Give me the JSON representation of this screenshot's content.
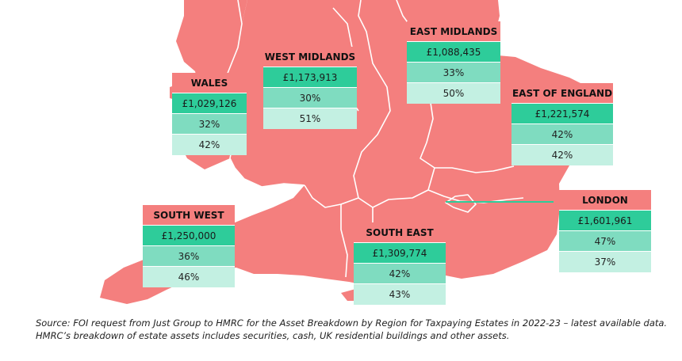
{
  "colors": {
    "land": "#f47f7e",
    "border": "#ffffff",
    "name_band": "#f47f7e",
    "value_band": "#2ecc9a",
    "pct_band_1": "#7fdcc0",
    "pct_band_2": "#c3f0e2",
    "london_pointer": "#2ecc9a"
  },
  "regions": [
    {
      "key": "east_midlands",
      "name": "EAST MIDLANDS",
      "value": "£1,088,435",
      "pct_1": "33%",
      "pct_2": "50%"
    },
    {
      "key": "west_midlands",
      "name": "WEST MIDLANDS",
      "value": "£1,173,913",
      "pct_1": "30%",
      "pct_2": "51%"
    },
    {
      "key": "wales",
      "name": "WALES",
      "value": "£1,029,126",
      "pct_1": "32%",
      "pct_2": "42%"
    },
    {
      "key": "east_of_england",
      "name": "EAST OF ENGLAND",
      "value": "£1,221,574",
      "pct_1": "42%",
      "pct_2": "42%"
    },
    {
      "key": "london",
      "name": "LONDON",
      "value": "£1,601,961",
      "pct_1": "47%",
      "pct_2": "37%"
    },
    {
      "key": "south_west",
      "name": "SOUTH WEST",
      "value": "£1,250,000",
      "pct_1": "36%",
      "pct_2": "46%"
    },
    {
      "key": "south_east",
      "name": "SOUTH EAST",
      "value": "£1,309,774",
      "pct_1": "42%",
      "pct_2": "43%"
    }
  ],
  "source": {
    "line_1": "Source: FOI request from Just Group to HMRC for the Asset Breakdown by Region for Taxpaying Estates in 2022-23 – latest available data.",
    "line_2": "HMRC’s breakdown of estate assets includes securities, cash, UK residential buildings and other assets."
  }
}
